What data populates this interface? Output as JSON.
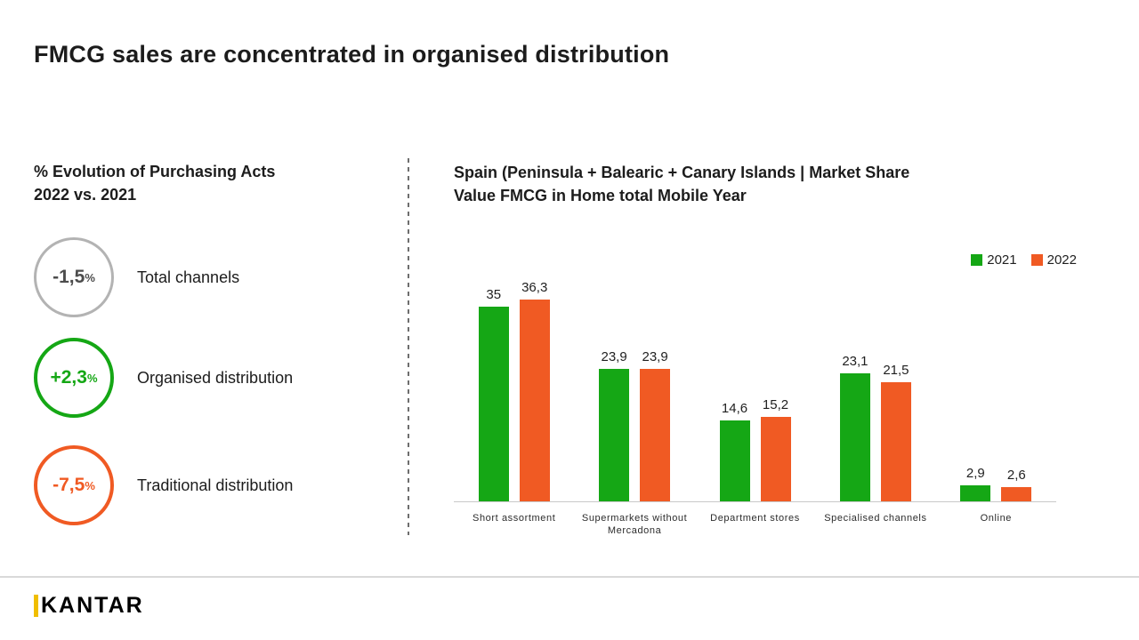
{
  "title": "FMCG sales are concentrated in organised distribution",
  "left_panel": {
    "heading_line1": "% Evolution of Purchasing Acts",
    "heading_line2": "2022 vs. 2021",
    "items": [
      {
        "value": "-1,5",
        "suffix": "%",
        "label": "Total channels",
        "color": "#b3b3b3"
      },
      {
        "value": "+2,3",
        "suffix": "%",
        "label": "Organised distribution",
        "color": "#15a715"
      },
      {
        "value": "-7,5",
        "suffix": "%",
        "label": "Traditional distribution",
        "color": "#f05a23"
      }
    ]
  },
  "right_panel": {
    "heading_line1": "Spain (Peninsula + Balearic + Canary Islands | Market Share",
    "heading_line2": "Value FMCG in Home total Mobile Year"
  },
  "chart_data": {
    "type": "bar",
    "categories": [
      "Short assortment",
      "Supermarkets without Mercadona",
      "Department stores",
      "Specialised channels",
      "Online"
    ],
    "series": [
      {
        "name": "2021",
        "color": "#15a715",
        "values": [
          35,
          23.9,
          14.6,
          23.1,
          2.9
        ],
        "labels": [
          "35",
          "23,9",
          "14,6",
          "23,1",
          "2,9"
        ]
      },
      {
        "name": "2022",
        "color": "#f05a23",
        "values": [
          36.3,
          23.9,
          15.2,
          21.5,
          2.6
        ],
        "labels": [
          "36,3",
          "23,9",
          "15,2",
          "21,5",
          "2,6"
        ]
      }
    ],
    "ylim": [
      0,
      40
    ],
    "grid": false,
    "legend_position": "top-right",
    "decimal_separator": ","
  },
  "footer": {
    "logo_text": "KANTAR"
  },
  "colors": {
    "green": "#15a715",
    "orange": "#f05a23",
    "gray": "#b3b3b3",
    "text": "#1f1f1f",
    "logo_accent": "#f0be00"
  }
}
